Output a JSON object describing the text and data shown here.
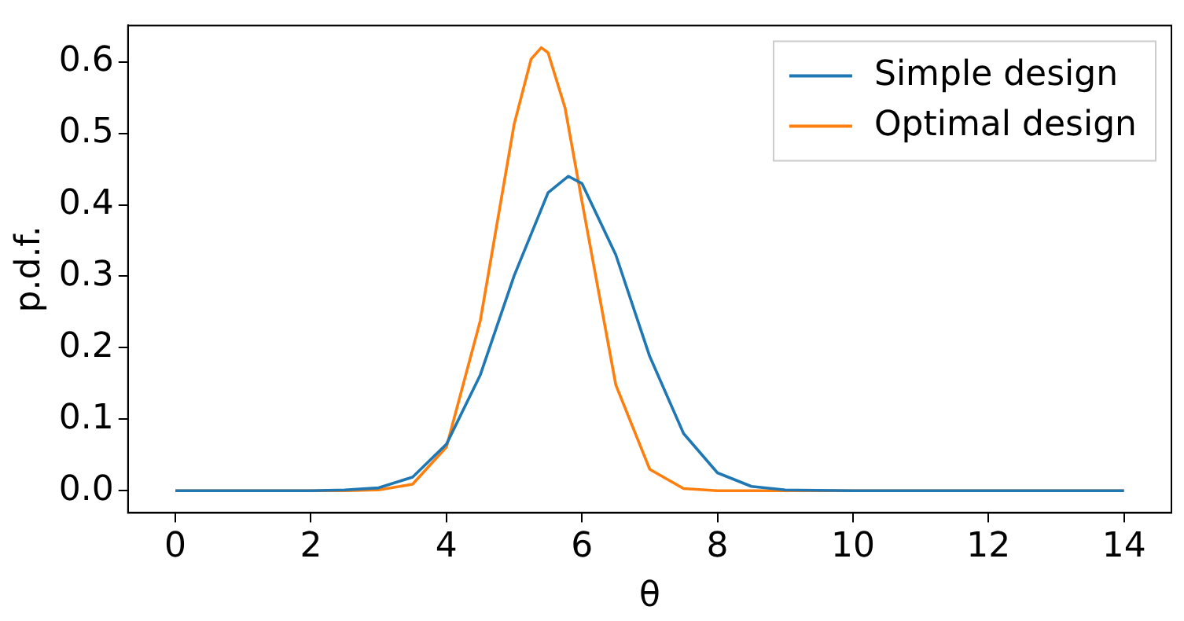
{
  "chart_data": {
    "type": "line",
    "xlabel": "θ",
    "ylabel": "p.d.f.",
    "xlim": [
      -0.7,
      14.7
    ],
    "xticks": [
      0,
      2,
      4,
      6,
      8,
      10,
      12,
      14
    ],
    "ylim": [
      -0.031,
      0.651
    ],
    "yticks": [
      {
        "value": 0,
        "label": "0.0"
      },
      {
        "value": 0.1,
        "label": "0.1"
      },
      {
        "value": 0.2,
        "label": "0.2"
      },
      {
        "value": 0.3,
        "label": "0.3"
      },
      {
        "value": 0.4,
        "label": "0.4"
      },
      {
        "value": 0.5,
        "label": "0.5"
      },
      {
        "value": 0.6,
        "label": "0.6"
      }
    ],
    "grid": false,
    "legend": "top right",
    "marker": "none",
    "line_style": "solid",
    "series": [
      {
        "name": "Simple design",
        "color": "#1f77b4",
        "x": [
          0,
          2,
          2.5,
          3,
          3.5,
          4,
          4.5,
          5,
          5.5,
          5.8,
          6,
          6.5,
          7,
          7.5,
          8,
          8.5,
          9,
          10,
          14
        ],
        "values": [
          0,
          0,
          0.001,
          0.004,
          0.019,
          0.065,
          0.162,
          0.301,
          0.417,
          0.44,
          0.43,
          0.33,
          0.188,
          0.08,
          0.025,
          0.006,
          0.001,
          0,
          0
        ]
      },
      {
        "name": "Optimal design",
        "color": "#ff7f0e",
        "x": [
          0,
          2.5,
          3,
          3.5,
          4,
          4.5,
          5,
          5.25,
          5.4,
          5.5,
          5.75,
          6,
          6.5,
          7,
          7.5,
          8,
          14
        ],
        "values": [
          0,
          0,
          0.001,
          0.009,
          0.061,
          0.238,
          0.513,
          0.604,
          0.62,
          0.613,
          0.536,
          0.405,
          0.148,
          0.03,
          0.003,
          0,
          0
        ]
      }
    ]
  }
}
